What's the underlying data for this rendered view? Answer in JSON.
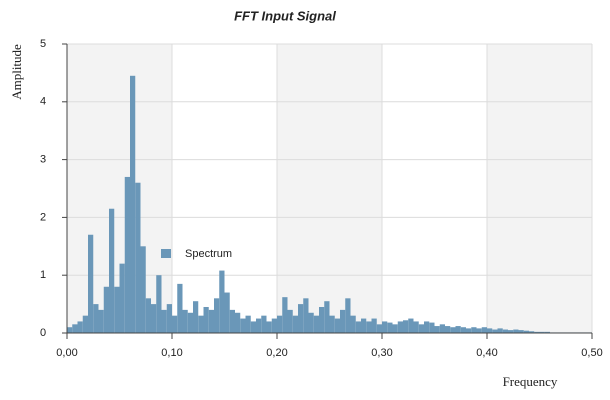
{
  "chart_data": {
    "type": "bar",
    "title": "FFT Input Signal",
    "x_label": "Frequency",
    "y_label": "Amplitude",
    "x": [
      0,
      0.005,
      0.01,
      0.015,
      0.02,
      0.025,
      0.03,
      0.035,
      0.04,
      0.045,
      0.05,
      0.055,
      0.06,
      0.065,
      0.07,
      0.075,
      0.08,
      0.085,
      0.09,
      0.095,
      0.1,
      0.105,
      0.11,
      0.115,
      0.12,
      0.125,
      0.13,
      0.135,
      0.14,
      0.145,
      0.15,
      0.155,
      0.16,
      0.165,
      0.17,
      0.175,
      0.18,
      0.185,
      0.19,
      0.195,
      0.2,
      0.205,
      0.21,
      0.215,
      0.22,
      0.225,
      0.23,
      0.235,
      0.24,
      0.245,
      0.25,
      0.255,
      0.26,
      0.265,
      0.27,
      0.275,
      0.28,
      0.285,
      0.29,
      0.295,
      0.3,
      0.305,
      0.31,
      0.315,
      0.32,
      0.325,
      0.33,
      0.335,
      0.34,
      0.345,
      0.35,
      0.355,
      0.36,
      0.365,
      0.37,
      0.375,
      0.38,
      0.385,
      0.39,
      0.395,
      0.4,
      0.405,
      0.41,
      0.415,
      0.42,
      0.425,
      0.43,
      0.435,
      0.44,
      0.445,
      0.45,
      0.455,
      0.46,
      0.465,
      0.47,
      0.475,
      0.48,
      0.485,
      0.49,
      0.495
    ],
    "series": [
      {
        "name": "Spectrum",
        "color": "#6a97b8",
        "values": [
          0.1,
          0.15,
          0.2,
          0.3,
          1.7,
          0.5,
          0.4,
          0.8,
          2.15,
          0.8,
          1.2,
          2.7,
          4.45,
          2.6,
          1.5,
          0.6,
          0.5,
          1.0,
          0.4,
          0.5,
          0.3,
          0.85,
          0.4,
          0.35,
          0.55,
          0.3,
          0.45,
          0.4,
          0.6,
          1.08,
          0.7,
          0.4,
          0.35,
          0.25,
          0.3,
          0.2,
          0.25,
          0.3,
          0.2,
          0.25,
          0.3,
          0.62,
          0.4,
          0.3,
          0.5,
          0.6,
          0.35,
          0.3,
          0.45,
          0.55,
          0.3,
          0.25,
          0.4,
          0.6,
          0.3,
          0.2,
          0.25,
          0.2,
          0.25,
          0.15,
          0.2,
          0.18,
          0.15,
          0.2,
          0.22,
          0.25,
          0.2,
          0.15,
          0.2,
          0.18,
          0.12,
          0.15,
          0.12,
          0.1,
          0.12,
          0.1,
          0.08,
          0.1,
          0.08,
          0.1,
          0.08,
          0.06,
          0.08,
          0.06,
          0.05,
          0.06,
          0.05,
          0.04,
          0.03,
          0.02,
          0.02,
          0.02,
          0.01,
          0.01,
          0.01,
          0.01,
          0.01,
          0.01,
          0.01,
          0.01
        ]
      }
    ],
    "xlim": [
      0,
      0.5
    ],
    "ylim": [
      0,
      5
    ],
    "xticks": [
      {
        "value": 0,
        "label": "0,00"
      },
      {
        "value": 0.1,
        "label": "0,10"
      },
      {
        "value": 0.2,
        "label": "0,20"
      },
      {
        "value": 0.3,
        "label": "0,30"
      },
      {
        "value": 0.4,
        "label": "0,40"
      },
      {
        "value": 0.5,
        "label": "0,50"
      }
    ],
    "yticks": [
      0,
      1,
      2,
      3,
      4,
      5
    ],
    "grid": true
  }
}
